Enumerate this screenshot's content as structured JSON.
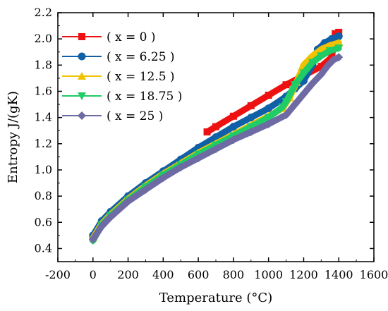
{
  "chart_data": {
    "type": "line",
    "title": "",
    "xlabel": "Temperature (°C)",
    "ylabel": "Entropy J/(gK)",
    "xlim": [
      -200,
      1600
    ],
    "ylim": [
      0.3,
      2.2
    ],
    "xticks": [
      "-200",
      "0",
      "200",
      "400",
      "600",
      "800",
      "1000",
      "1200",
      "1400",
      "1600"
    ],
    "yticks": [
      "0.4",
      "0.6",
      "0.8",
      "1.0",
      "1.2",
      "1.4",
      "1.6",
      "1.8",
      "2.0",
      "2.2"
    ],
    "grid": false,
    "legend_position": "top-left",
    "series": [
      {
        "name": "( x = 0 )",
        "color": "#ee1111",
        "marker": "square",
        "points": [
          [
            650,
            1.29
          ],
          [
            700,
            1.33
          ],
          [
            800,
            1.41
          ],
          [
            900,
            1.49
          ],
          [
            1000,
            1.57
          ],
          [
            1100,
            1.65
          ],
          [
            1200,
            1.72
          ],
          [
            1300,
            1.79
          ],
          [
            1360,
            1.86
          ],
          [
            1380,
            2.04
          ],
          [
            1400,
            2.05
          ]
        ]
      },
      {
        "name": "( x = 6.25 )",
        "color": "#1060a8",
        "marker": "circle",
        "points": [
          [
            0,
            0.5
          ],
          [
            50,
            0.61
          ],
          [
            100,
            0.68
          ],
          [
            200,
            0.8
          ],
          [
            300,
            0.9
          ],
          [
            400,
            0.99
          ],
          [
            500,
            1.08
          ],
          [
            600,
            1.17
          ],
          [
            700,
            1.25
          ],
          [
            800,
            1.33
          ],
          [
            900,
            1.4
          ],
          [
            1000,
            1.47
          ],
          [
            1100,
            1.56
          ],
          [
            1150,
            1.62
          ],
          [
            1200,
            1.68
          ],
          [
            1250,
            1.8
          ],
          [
            1280,
            1.92
          ],
          [
            1320,
            1.97
          ],
          [
            1360,
            2.0
          ],
          [
            1400,
            2.02
          ]
        ]
      },
      {
        "name": "( x = 12.5 )",
        "color": "#f2c200",
        "marker": "triangle-up",
        "points": [
          [
            0,
            0.48
          ],
          [
            50,
            0.59
          ],
          [
            100,
            0.66
          ],
          [
            200,
            0.78
          ],
          [
            300,
            0.88
          ],
          [
            400,
            0.97
          ],
          [
            500,
            1.05
          ],
          [
            600,
            1.13
          ],
          [
            700,
            1.2
          ],
          [
            800,
            1.27
          ],
          [
            900,
            1.34
          ],
          [
            1000,
            1.41
          ],
          [
            1080,
            1.47
          ],
          [
            1120,
            1.55
          ],
          [
            1160,
            1.67
          ],
          [
            1200,
            1.8
          ],
          [
            1250,
            1.87
          ],
          [
            1300,
            1.92
          ],
          [
            1350,
            1.95
          ],
          [
            1400,
            1.97
          ]
        ]
      },
      {
        "name": "( x = 18.75 )",
        "color": "#1fcc66",
        "marker": "triangle-down",
        "points": [
          [
            0,
            0.46
          ],
          [
            50,
            0.58
          ],
          [
            100,
            0.65
          ],
          [
            200,
            0.77
          ],
          [
            300,
            0.87
          ],
          [
            400,
            0.96
          ],
          [
            500,
            1.04
          ],
          [
            600,
            1.12
          ],
          [
            700,
            1.19
          ],
          [
            800,
            1.26
          ],
          [
            900,
            1.33
          ],
          [
            1000,
            1.4
          ],
          [
            1080,
            1.48
          ],
          [
            1100,
            1.52
          ],
          [
            1150,
            1.65
          ],
          [
            1200,
            1.74
          ],
          [
            1250,
            1.82
          ],
          [
            1300,
            1.87
          ],
          [
            1350,
            1.91
          ],
          [
            1400,
            1.93
          ]
        ]
      },
      {
        "name": "( x = 25 )",
        "color": "#6e6aa4",
        "marker": "diamond",
        "points": [
          [
            0,
            0.47
          ],
          [
            50,
            0.57
          ],
          [
            100,
            0.64
          ],
          [
            200,
            0.76
          ],
          [
            300,
            0.85
          ],
          [
            400,
            0.94
          ],
          [
            500,
            1.02
          ],
          [
            600,
            1.09
          ],
          [
            700,
            1.16
          ],
          [
            800,
            1.23
          ],
          [
            900,
            1.29
          ],
          [
            1000,
            1.35
          ],
          [
            1100,
            1.42
          ],
          [
            1150,
            1.5
          ],
          [
            1200,
            1.58
          ],
          [
            1250,
            1.66
          ],
          [
            1300,
            1.73
          ],
          [
            1340,
            1.8
          ],
          [
            1370,
            1.84
          ],
          [
            1400,
            1.86
          ]
        ]
      }
    ]
  }
}
